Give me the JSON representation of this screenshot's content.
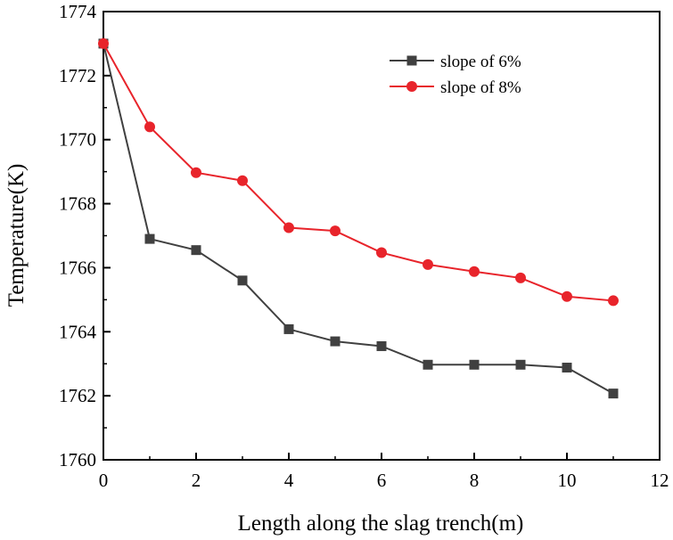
{
  "chart_data": {
    "type": "line",
    "title": "",
    "xlabel": "Length along the slag trench(m)",
    "ylabel": "Temperature(K)",
    "xlim": [
      0,
      12
    ],
    "ylim": [
      1760,
      1774
    ],
    "xticks": [
      0,
      2,
      4,
      6,
      8,
      10,
      12
    ],
    "yticks": [
      1760,
      1762,
      1764,
      1766,
      1768,
      1770,
      1772,
      1774
    ],
    "grid": false,
    "legend_position": "top-right",
    "x": [
      0,
      1,
      2,
      3,
      4,
      5,
      6,
      7,
      8,
      9,
      10,
      11
    ],
    "series": [
      {
        "name": "slope of 6%",
        "color": "#404040",
        "marker": "square",
        "values": [
          1773.0,
          1766.9,
          1766.55,
          1765.6,
          1764.08,
          1763.7,
          1763.55,
          1762.97,
          1762.97,
          1762.97,
          1762.88,
          1762.07
        ]
      },
      {
        "name": "slope of 8%",
        "color": "#e8242b",
        "marker": "circle",
        "values": [
          1773.0,
          1770.4,
          1768.97,
          1768.72,
          1767.25,
          1767.15,
          1766.47,
          1766.1,
          1765.88,
          1765.68,
          1765.1,
          1764.97
        ]
      }
    ]
  }
}
